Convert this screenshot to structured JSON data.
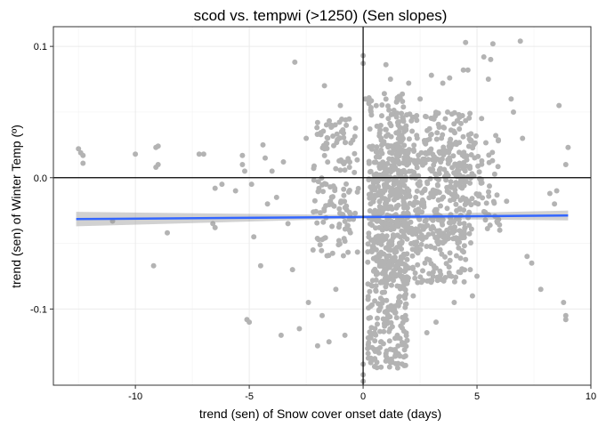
{
  "chart_data": {
    "type": "scatter",
    "title": "scod vs. tempwi (>1250) (Sen slopes)",
    "xlabel": "trend (sen) of Snow cover onset date (days)",
    "ylabel": "trend (sen) of Winter Temp (º)",
    "xlim": [
      -13.6,
      10.0
    ],
    "ylim": [
      -0.158,
      0.115
    ],
    "xticks": [
      -10,
      -5,
      0,
      5,
      10
    ],
    "xtick_labels": [
      "-10",
      "-5",
      "0",
      "5",
      "10"
    ],
    "yticks": [
      -0.1,
      0.0,
      0.1
    ],
    "ytick_labels": [
      "-0.1",
      "0.0",
      "0.1"
    ],
    "grid": true,
    "reference_lines": {
      "x": 0,
      "y": 0
    },
    "point_color": "#b3b3b3",
    "fit_color": "#3366ff",
    "band_color": "#999999",
    "fit_line": {
      "x": [
        -12.6,
        9.0
      ],
      "y": [
        -0.0315,
        -0.0288
      ]
    },
    "confidence_band": {
      "x": [
        -12.6,
        0,
        9.0
      ],
      "lower": [
        -0.037,
        -0.031,
        -0.0325
      ],
      "upper": [
        -0.026,
        -0.0285,
        -0.025
      ]
    },
    "points": [
      [
        -12.5,
        0.022
      ],
      [
        -12.4,
        0.019
      ],
      [
        -12.3,
        0.011
      ],
      [
        -12.3,
        0.017
      ],
      [
        -11,
        -0.033
      ],
      [
        -10,
        0.018
      ],
      [
        -9.1,
        0.023
      ],
      [
        -9.0,
        0.024
      ],
      [
        -9.1,
        0.008
      ],
      [
        -9.0,
        0.01
      ],
      [
        -9.2,
        -0.067
      ],
      [
        -8.6,
        -0.042
      ],
      [
        -7.2,
        0.018
      ],
      [
        -7.0,
        0.018
      ],
      [
        -6.6,
        -0.035
      ],
      [
        -6.5,
        -0.038
      ],
      [
        -6.2,
        -0.005
      ],
      [
        -6.5,
        -0.008
      ],
      [
        -5.6,
        -0.01
      ],
      [
        -5.1,
        -0.108
      ],
      [
        -5.0,
        -0.11
      ],
      [
        -5.3,
        0.017
      ],
      [
        -5.3,
        0.01
      ],
      [
        -5.2,
        0.005
      ],
      [
        -4.8,
        -0.045
      ],
      [
        -4.9,
        -0.005
      ],
      [
        -4.5,
        -0.067
      ],
      [
        -4.4,
        0.025
      ],
      [
        -4.3,
        0.015
      ],
      [
        -4.2,
        -0.02
      ],
      [
        -4.0,
        0.005
      ],
      [
        -3.8,
        -0.015
      ],
      [
        -3.6,
        -0.12
      ],
      [
        -3.5,
        0.012
      ],
      [
        -3.3,
        -0.035
      ],
      [
        -3.0,
        0.088
      ],
      [
        -3.1,
        -0.07
      ],
      [
        -2.8,
        -0.115
      ],
      [
        -2.5,
        0.03
      ],
      [
        -2.4,
        -0.095
      ],
      [
        -2.2,
        -0.055
      ],
      [
        -2.0,
        -0.128
      ],
      [
        -2.0,
        0.042
      ],
      [
        -1.8,
        -0.105
      ],
      [
        -1.7,
        0.07
      ],
      [
        -1.5,
        -0.125
      ],
      [
        -1.4,
        0.04
      ],
      [
        -1.2,
        -0.085
      ],
      [
        -1.0,
        0.055
      ],
      [
        -0.8,
        -0.12
      ],
      [
        -0.6,
        0.008
      ],
      [
        0.0,
        0.093
      ],
      [
        0.0,
        0.087
      ],
      [
        0.0,
        -0.155
      ],
      [
        0.0,
        -0.15
      ],
      [
        0.0,
        -0.142
      ],
      [
        0.1,
        0.06
      ],
      [
        0.2,
        -0.13
      ],
      [
        1.0,
        0.086
      ],
      [
        1.0,
        -0.134
      ],
      [
        1.2,
        0.075
      ],
      [
        1.5,
        -0.12
      ],
      [
        2.0,
        0.072
      ],
      [
        2.2,
        -0.09
      ],
      [
        2.5,
        0.06
      ],
      [
        2.8,
        -0.118
      ],
      [
        3.0,
        0.078
      ],
      [
        3.2,
        -0.11
      ],
      [
        3.5,
        0.072
      ],
      [
        3.8,
        0.076
      ],
      [
        4.0,
        -0.095
      ],
      [
        4.2,
        0.048
      ],
      [
        4.4,
        0.082
      ],
      [
        4.5,
        0.103
      ],
      [
        4.6,
        0.082
      ],
      [
        4.7,
        -0.07
      ],
      [
        4.8,
        -0.09
      ],
      [
        5.0,
        -0.075
      ],
      [
        5.2,
        0.045
      ],
      [
        5.5,
        0.075
      ],
      [
        5.3,
        0.092
      ],
      [
        5.6,
        0.09
      ],
      [
        5.7,
        0.102
      ],
      [
        6.0,
        -0.04
      ],
      [
        6.3,
        -0.018
      ],
      [
        6.5,
        0.06
      ],
      [
        6.6,
        0.05
      ],
      [
        6.9,
        0.104
      ],
      [
        7.0,
        0.03
      ],
      [
        7.2,
        -0.06
      ],
      [
        7.4,
        -0.065
      ],
      [
        7.8,
        -0.085
      ],
      [
        8.2,
        -0.012
      ],
      [
        8.4,
        -0.02
      ],
      [
        8.5,
        -0.01
      ],
      [
        8.6,
        0.055
      ],
      [
        8.8,
        -0.095
      ],
      [
        8.9,
        0.01
      ],
      [
        8.9,
        -0.105
      ],
      [
        9.0,
        0.023
      ],
      [
        8.9,
        -0.108
      ]
    ],
    "clusters": [
      {
        "xrange": [
          -2.2,
          -0.2
        ],
        "yrange": [
          -0.06,
          0.045
        ],
        "n": 140
      },
      {
        "xrange": [
          0.2,
          2.0
        ],
        "yrange": [
          -0.145,
          0.025
        ],
        "n": 420
      },
      {
        "xrange": [
          0.4,
          4.5
        ],
        "yrange": [
          -0.08,
          0.025
        ],
        "n": 420
      },
      {
        "xrange": [
          1.5,
          4.8
        ],
        "yrange": [
          -0.05,
          0.05
        ],
        "n": 240
      },
      {
        "xrange": [
          0.2,
          1.8
        ],
        "yrange": [
          0.02,
          0.065
        ],
        "n": 70
      },
      {
        "xrange": [
          4.5,
          6.0
        ],
        "yrange": [
          -0.04,
          0.035
        ],
        "n": 60
      }
    ]
  }
}
